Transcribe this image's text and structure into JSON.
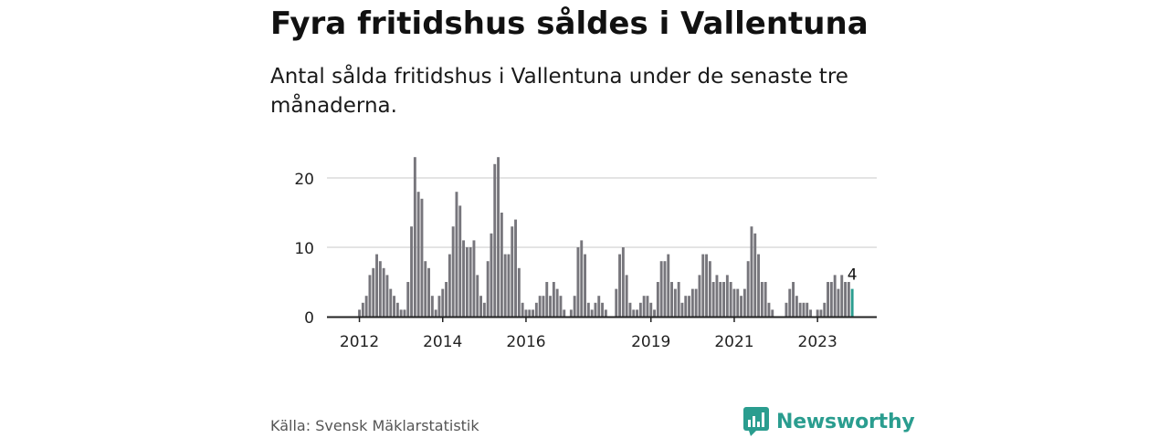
{
  "title": "Fyra fritidshus såldes i Vallentuna",
  "subtitle": "Antal sålda fritidshus i Vallentuna under de senaste tre månaderna.",
  "source": "Källa: Svensk Mäklarstatistik",
  "brand": "Newsworthy",
  "colors": {
    "bar": "#77767c",
    "highlight": "#2a9d8f",
    "grid": "#dcdcdc",
    "axis": "#222222",
    "brand": "#2a9d8f"
  },
  "chart_data": {
    "type": "bar",
    "title": "Fyra fritidshus såldes i Vallentuna",
    "xlabel": "",
    "ylabel": "",
    "ylim": [
      0,
      23
    ],
    "yticks": [
      0,
      10,
      20
    ],
    "xtick_labels": [
      "2012",
      "2014",
      "2016",
      "2019",
      "2021",
      "2023"
    ],
    "x_range": [
      "2011-11",
      "2024-04"
    ],
    "grid": true,
    "values": [
      0,
      0,
      1,
      2,
      3,
      6,
      7,
      9,
      8,
      7,
      6,
      4,
      3,
      2,
      1,
      1,
      5,
      13,
      23,
      18,
      17,
      8,
      7,
      3,
      1,
      3,
      4,
      5,
      9,
      13,
      18,
      16,
      11,
      10,
      10,
      11,
      6,
      3,
      2,
      8,
      12,
      22,
      23,
      15,
      9,
      9,
      13,
      14,
      7,
      2,
      1,
      1,
      1,
      2,
      3,
      3,
      5,
      3,
      5,
      4,
      3,
      1,
      0,
      1,
      3,
      10,
      11,
      9,
      2,
      1,
      2,
      3,
      2,
      1,
      0,
      0,
      4,
      9,
      10,
      6,
      2,
      1,
      1,
      2,
      3,
      3,
      2,
      1,
      5,
      8,
      8,
      9,
      5,
      4,
      5,
      2,
      3,
      3,
      4,
      4,
      6,
      9,
      9,
      8,
      5,
      6,
      5,
      5,
      6,
      5,
      4,
      4,
      3,
      4,
      8,
      13,
      12,
      9,
      5,
      5,
      2,
      1,
      0,
      0,
      0,
      2,
      4,
      5,
      3,
      2,
      2,
      2,
      1,
      0,
      1,
      1,
      2,
      5,
      5,
      6,
      4,
      6,
      5,
      5,
      4
    ],
    "highlight_label": "4"
  }
}
